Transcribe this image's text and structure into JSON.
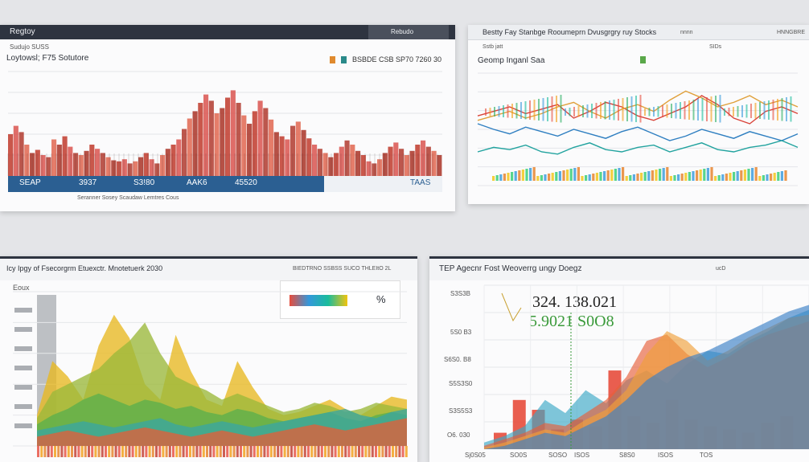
{
  "panel1": {
    "tab": "Regtoy",
    "header_right": "Rebudo",
    "subtitle": "Sudujo SUSS",
    "title": "Loytowsl; F75 Sotutore",
    "legend_text": "BSBDE CSB SP70 7260 30",
    "footer_values": [
      "SEAP",
      "3937",
      "S3!80",
      "AAK6",
      "45520",
      "TAAS"
    ],
    "footer_small": "Seranner Sosey Scaudaw Lemtres Cous",
    "colors": {
      "bars": "#c0392b",
      "footer": "#2b5f92"
    }
  },
  "panel2": {
    "title": "Bestty Fay Stanbge Rooumeprn Dvusgrgry ruy Stocks",
    "title_right": "nnnn",
    "title_right2": "HNNGBRE",
    "subtitle": "Sstb jatt",
    "right_top_label": "SIDs",
    "chart_label": "Geomp Inganl Saa"
  },
  "panel3": {
    "title": "Icy Ipgy of Fsecorgrm Etuexctr. Mnotetuerk 2030",
    "header_right": "BIEDTRNO SSBSS SUCO THLEItO 2L",
    "y_label_top": "Eoux",
    "legend_text": "%"
  },
  "panel4": {
    "title": "TEP Agecnr Fost Weoverrg ungy Doegz",
    "header_right": "ucD",
    "big_value_1": "324. 138.021",
    "big_value_2": "5.9021 S0O8",
    "y_ticks": [
      "S3S3B",
      "5S0 B3",
      "S6S0. B8",
      "S5S3S0",
      "S3S5S3",
      "O6. 030"
    ],
    "x_ticks": [
      "Sj0S05",
      "SO0S",
      "SOSO",
      "ISOS",
      "S8S0",
      "ISOS",
      "TOS"
    ]
  },
  "chart_data": [
    {
      "type": "bar",
      "title": "Loytowsl; F75 Sotutore",
      "categories": [
        1,
        2,
        3,
        4,
        5,
        6,
        7,
        8,
        9,
        10,
        11,
        12,
        13,
        14,
        15,
        16,
        17,
        18,
        19,
        20,
        21,
        22,
        23,
        24,
        25,
        26,
        27,
        28,
        29,
        30,
        31,
        32,
        33,
        34,
        35,
        36,
        37,
        38,
        39,
        40,
        41,
        42,
        43,
        44,
        45,
        46,
        47,
        48,
        49,
        50,
        51,
        52,
        53,
        54,
        55,
        56,
        57,
        58,
        59,
        60,
        61,
        62,
        63,
        64,
        65,
        66,
        67,
        68,
        69,
        70,
        71,
        72,
        73,
        74,
        75,
        76,
        77,
        78,
        79,
        80
      ],
      "values": [
        40,
        48,
        42,
        30,
        22,
        25,
        20,
        18,
        35,
        30,
        38,
        28,
        22,
        20,
        24,
        30,
        26,
        22,
        18,
        15,
        14,
        16,
        12,
        14,
        18,
        22,
        16,
        12,
        20,
        26,
        30,
        35,
        45,
        55,
        62,
        70,
        78,
        72,
        60,
        65,
        75,
        82,
        70,
        58,
        50,
        62,
        72,
        65,
        54,
        42,
        38,
        35,
        48,
        52,
        44,
        36,
        30,
        26,
        22,
        18,
        22,
        28,
        34,
        30,
        24,
        20,
        14,
        12,
        16,
        22,
        28,
        32,
        26,
        20,
        24,
        30,
        34,
        28,
        24,
        20
      ],
      "ylim": [
        0,
        100
      ]
    },
    {
      "type": "line",
      "title": "Geomp Inganl Saa",
      "x": [
        0,
        1,
        2,
        3,
        4,
        5,
        6,
        7,
        8,
        9,
        10,
        11,
        12,
        13,
        14,
        15,
        16,
        17,
        18,
        19,
        20
      ],
      "series": [
        {
          "name": "red",
          "values": [
            62,
            66,
            70,
            64,
            68,
            72,
            60,
            66,
            74,
            70,
            62,
            58,
            64,
            70,
            80,
            72,
            60,
            55,
            66,
            70,
            64
          ]
        },
        {
          "name": "blue",
          "values": [
            55,
            50,
            46,
            52,
            48,
            44,
            50,
            46,
            42,
            48,
            52,
            46,
            40,
            44,
            50,
            46,
            42,
            48,
            44,
            40,
            46
          ]
        },
        {
          "name": "teal",
          "values": [
            30,
            34,
            32,
            36,
            30,
            28,
            34,
            38,
            32,
            30,
            34,
            36,
            30,
            34,
            38,
            32,
            30,
            34,
            36,
            40,
            34
          ]
        },
        {
          "name": "orange",
          "values": [
            58,
            62,
            66,
            60,
            64,
            70,
            74,
            66,
            60,
            68,
            72,
            66,
            76,
            84,
            78,
            70,
            74,
            80,
            72,
            76,
            70
          ]
        }
      ],
      "ylim": [
        0,
        100
      ]
    },
    {
      "type": "area",
      "title": "Icy Ipgy of Fsecorgrm Etuexctr. Mnotetuerk 2030",
      "x": [
        0,
        1,
        2,
        3,
        4,
        5,
        6,
        7,
        8,
        9,
        10,
        11,
        12,
        13,
        14,
        15,
        16,
        17,
        18,
        19,
        20,
        21,
        22,
        23,
        24
      ],
      "series": [
        {
          "name": "yellow",
          "values": [
            20,
            55,
            45,
            30,
            65,
            85,
            70,
            40,
            30,
            72,
            48,
            30,
            26,
            55,
            38,
            24,
            20,
            22,
            26,
            30,
            24,
            20,
            26,
            32,
            30
          ]
        },
        {
          "name": "olive",
          "values": [
            18,
            35,
            40,
            45,
            50,
            60,
            68,
            80,
            60,
            45,
            40,
            36,
            30,
            34,
            30,
            26,
            22,
            24,
            28,
            26,
            22,
            24,
            28,
            26,
            24
          ]
        },
        {
          "name": "green",
          "values": [
            14,
            20,
            24,
            30,
            34,
            30,
            26,
            30,
            28,
            24,
            26,
            22,
            20,
            24,
            22,
            18,
            16,
            18,
            20,
            22,
            18,
            16,
            20,
            22,
            20
          ]
        },
        {
          "name": "teal",
          "values": [
            10,
            12,
            14,
            16,
            14,
            12,
            14,
            16,
            18,
            14,
            12,
            14,
            16,
            14,
            12,
            14,
            16,
            18,
            20,
            22,
            24,
            20,
            18,
            22,
            24
          ]
        },
        {
          "name": "red",
          "values": [
            6,
            8,
            10,
            8,
            6,
            8,
            10,
            12,
            10,
            8,
            6,
            8,
            10,
            8,
            6,
            8,
            10,
            12,
            14,
            12,
            10,
            12,
            14,
            16,
            18
          ]
        }
      ],
      "ylim": [
        0,
        100
      ]
    },
    {
      "type": "area",
      "title": "TEP Agecnr Fost Weoverrg ungy Doegz",
      "x": [
        0,
        1,
        2,
        3,
        4,
        5,
        6,
        7,
        8,
        9,
        10,
        11,
        12,
        13,
        14,
        15,
        16
      ],
      "series": [
        {
          "name": "teal",
          "values": [
            4,
            8,
            14,
            30,
            22,
            36,
            28,
            42,
            48,
            40,
            52,
            60,
            58,
            66,
            72,
            80,
            85
          ]
        },
        {
          "name": "red",
          "values": [
            2,
            6,
            10,
            16,
            14,
            22,
            30,
            44,
            66,
            70,
            58,
            50,
            56,
            64,
            70,
            74,
            78
          ]
        },
        {
          "name": "orange",
          "values": [
            1,
            4,
            8,
            12,
            10,
            18,
            24,
            36,
            58,
            72,
            66,
            54,
            60,
            68,
            74,
            80,
            82
          ]
        },
        {
          "name": "blue",
          "values": [
            0,
            2,
            6,
            10,
            8,
            14,
            20,
            30,
            42,
            50,
            56,
            60,
            66,
            72,
            78,
            84,
            88
          ]
        }
      ],
      "bars": [
        10,
        30,
        24,
        12,
        18,
        14,
        48,
        20,
        16,
        30,
        18,
        14,
        12,
        10,
        16,
        20
      ],
      "ylim": [
        0,
        100
      ]
    }
  ]
}
